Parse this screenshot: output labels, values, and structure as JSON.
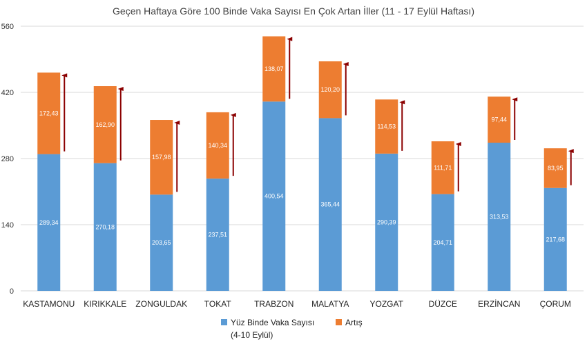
{
  "chart_data": {
    "type": "bar",
    "stacked": true,
    "title": "Geçen Haftaya Göre 100 Binde Vaka Sayısı En Çok Artan İller (11 - 17 Eylül Haftası)",
    "categories": [
      "KASTAMONU",
      "KIRIKKALE",
      "ZONGULDAK",
      "TOKAT",
      "TRABZON",
      "MALATYA",
      "YOZGAT",
      "DÜZCE",
      "ERZİNCAN",
      "ÇORUM"
    ],
    "series": [
      {
        "name": "Yüz Binde Vaka Sayısı (4-10 Eylül)",
        "color": "#5b9bd5",
        "values": [
          289.34,
          270.18,
          203.65,
          237.51,
          400.54,
          365.44,
          290.39,
          204.71,
          313.53,
          217.68
        ],
        "labels": [
          "289,34",
          "270,18",
          "203,65",
          "237,51",
          "400,54",
          "365,44",
          "290,39",
          "204,71",
          "313,53",
          "217,68"
        ]
      },
      {
        "name": "Artış",
        "color": "#ed7d31",
        "values": [
          172.43,
          162.9,
          157.98,
          140.34,
          138.07,
          120.2,
          114.53,
          111.71,
          97.44,
          83.95
        ],
        "labels": [
          "172,43",
          "162,90",
          "157,98",
          "140,34",
          "138,07",
          "120,20",
          "114,53",
          "111,71",
          "97,44",
          "83,95"
        ]
      }
    ],
    "ylim": [
      0,
      560
    ],
    "yticks": [
      0,
      140,
      280,
      420,
      560
    ],
    "ytick_labels": [
      "0",
      "140",
      "280",
      "420",
      "560"
    ],
    "grid": true,
    "legend": "bottom",
    "legend_entries": [
      {
        "line1": "Yüz Binde Vaka Sayısı",
        "line2": "(4-10 Eylül)",
        "color": "#5b9bd5"
      },
      {
        "line1": "Artış",
        "line2": "",
        "color": "#ed7d31"
      }
    ],
    "annotations": "upward arrows beside each bar",
    "arrow_color": "#8b0000"
  }
}
